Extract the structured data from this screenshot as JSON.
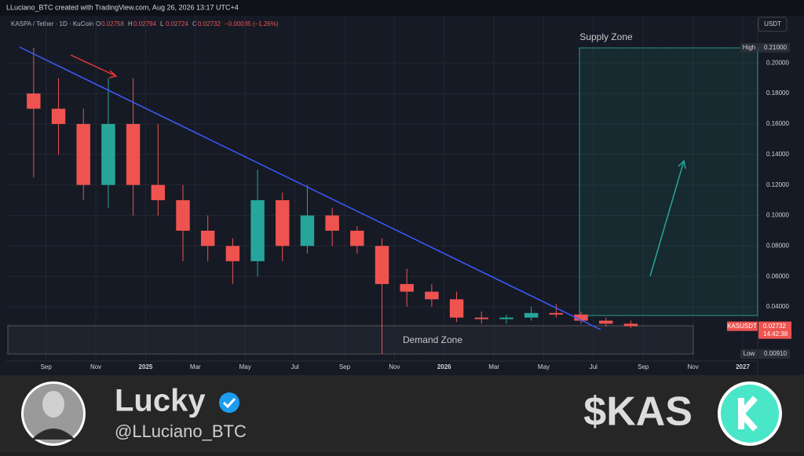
{
  "header": {
    "credit": "LLuciano_BTC created with TradingView.com, Aug 26, 2026 13:17 UTC+4"
  },
  "chart_data": {
    "type": "candlestick",
    "title": "KASPA / Tether · 1D · KuCoin",
    "legend_ohlc": [
      {
        "label": "O",
        "value": "0.02758"
      },
      {
        "label": "H",
        "value": "0.02794"
      },
      {
        "label": "L",
        "value": "0.02724"
      },
      {
        "label": "C",
        "value": "0.02732"
      }
    ],
    "change": "−0.00035 (−1.26%)",
    "currency": "USDT",
    "categories": [
      "2024-08",
      "2024-09",
      "2024-10",
      "2024-11",
      "2024-12",
      "2025-01",
      "2025-02",
      "2025-03",
      "2025-04",
      "2025-05",
      "2025-06",
      "2025-07",
      "2025-08",
      "2025-09",
      "2025-10",
      "2025-11",
      "2025-12",
      "2026-01",
      "2026-02",
      "2026-03",
      "2026-04",
      "2026-05",
      "2026-06",
      "2026-07",
      "2026-08"
    ],
    "open": [
      0.18,
      0.17,
      0.16,
      0.12,
      0.16,
      0.12,
      0.11,
      0.09,
      0.08,
      0.07,
      0.11,
      0.08,
      0.1,
      0.09,
      0.08,
      0.055,
      0.05,
      0.045,
      0.033,
      0.032,
      0.033,
      0.036,
      0.035,
      0.031,
      0.029
    ],
    "high": [
      0.21,
      0.19,
      0.17,
      0.19,
      0.19,
      0.16,
      0.12,
      0.1,
      0.085,
      0.13,
      0.115,
      0.12,
      0.105,
      0.093,
      0.085,
      0.065,
      0.055,
      0.05,
      0.037,
      0.035,
      0.04,
      0.042,
      0.037,
      0.033,
      0.031
    ],
    "low": [
      0.125,
      0.14,
      0.11,
      0.105,
      0.1,
      0.1,
      0.07,
      0.07,
      0.055,
      0.06,
      0.07,
      0.075,
      0.08,
      0.075,
      0.0091,
      0.04,
      0.04,
      0.03,
      0.029,
      0.029,
      0.031,
      0.033,
      0.029,
      0.027,
      0.026
    ],
    "close": [
      0.17,
      0.16,
      0.12,
      0.16,
      0.12,
      0.11,
      0.09,
      0.08,
      0.07,
      0.11,
      0.08,
      0.1,
      0.09,
      0.08,
      0.055,
      0.05,
      0.045,
      0.033,
      0.032,
      0.033,
      0.036,
      0.035,
      0.031,
      0.029,
      0.02732
    ],
    "up_color": "#26a69a",
    "down_color": "#ef5350",
    "xlim": [
      "2024-08",
      "2027-01"
    ],
    "xticks": [
      {
        "value": "2024-09",
        "label": "Sep"
      },
      {
        "value": "2024-11",
        "label": "Nov"
      },
      {
        "value": "2025-01",
        "label": "2025"
      },
      {
        "value": "2025-03",
        "label": "Mar"
      },
      {
        "value": "2025-05",
        "label": "May"
      },
      {
        "value": "2025-07",
        "label": "Jul"
      },
      {
        "value": "2025-09",
        "label": "Sep"
      },
      {
        "value": "2025-11",
        "label": "Nov"
      },
      {
        "value": "2026-01",
        "label": "2026"
      },
      {
        "value": "2026-03",
        "label": "Mar"
      },
      {
        "value": "2026-05",
        "label": "May"
      },
      {
        "value": "2026-07",
        "label": "Jul"
      },
      {
        "value": "2026-09",
        "label": "Sep"
      },
      {
        "value": "2026-11",
        "label": "Nov"
      },
      {
        "value": "2027-01",
        "label": "2027"
      }
    ],
    "ylim": [
      0.0045,
      0.23
    ],
    "yticks": [
      {
        "value": 0.04,
        "label": "0.04000"
      },
      {
        "value": 0.06,
        "label": "0.06000"
      },
      {
        "value": 0.08,
        "label": "0.08000"
      },
      {
        "value": 0.1,
        "label": "0.10000"
      },
      {
        "value": 0.12,
        "label": "0.12000"
      },
      {
        "value": 0.14,
        "label": "0.14000"
      },
      {
        "value": 0.16,
        "label": "0.16000"
      },
      {
        "value": 0.18,
        "label": "0.18000"
      },
      {
        "value": 0.2,
        "label": "0.20000"
      }
    ],
    "grid": true,
    "high_marker": {
      "name": "High",
      "price": {
        "value": 0.21,
        "label": "0.21000"
      }
    },
    "low_marker": {
      "name": "Low",
      "price": {
        "value": 0.0091,
        "label": "0.00910"
      }
    },
    "last_marker": {
      "name": "KASUSDT",
      "price": 0.02732,
      "countdown": "14:42:38"
    },
    "annotations": {
      "supply": "Supply Zone",
      "demand": "Demand Zone"
    }
  },
  "footer": {
    "name": "Lucky",
    "handle": "@LLuciano_BTC",
    "ticker": "$KAS"
  }
}
